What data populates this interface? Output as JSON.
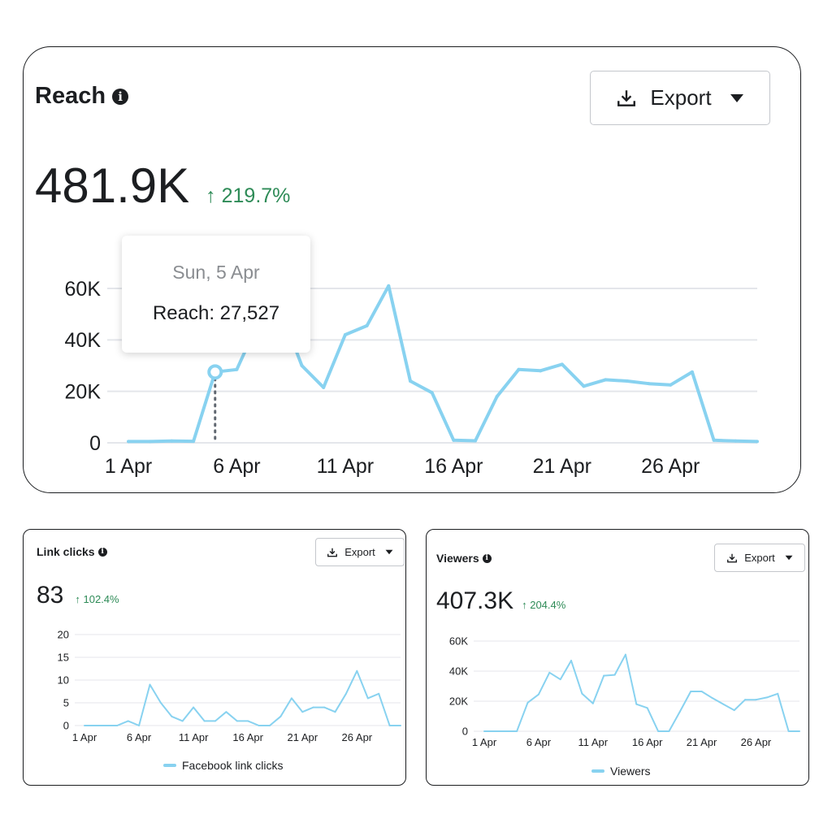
{
  "reach": {
    "title": "Reach",
    "info_icon": "info-icon",
    "export_label": "Export",
    "value": "481.9K",
    "delta": "219.7%",
    "tooltip": {
      "date": "Sun, 5 Apr",
      "label": "Reach: 27,527"
    }
  },
  "link_clicks": {
    "title": "Link clicks",
    "info_icon": "info-icon",
    "export_label": "Export",
    "value": "83",
    "delta": "102.4%",
    "legend": "Facebook link clicks"
  },
  "viewers": {
    "title": "Viewers",
    "info_icon": "info-icon",
    "export_label": "Export",
    "value": "407.3K",
    "delta": "204.4%",
    "legend": "Viewers"
  },
  "colors": {
    "line": "#88d2f0",
    "grid": "#e4e6eb",
    "positive": "#2e8b57",
    "text": "#1c1e21"
  },
  "chart_data": [
    {
      "type": "line",
      "id": "reach",
      "x": [
        1,
        2,
        3,
        4,
        5,
        6,
        7,
        8,
        9,
        10,
        11,
        12,
        13,
        14,
        15,
        16,
        17,
        18,
        19,
        20,
        21,
        22,
        23,
        24,
        25,
        26,
        27,
        28,
        29,
        30
      ],
      "x_tick_labels": [
        "1 Apr",
        "6 Apr",
        "11 Apr",
        "16 Apr",
        "21 Apr",
        "26 Apr"
      ],
      "x_tick_values": [
        1,
        6,
        11,
        16,
        21,
        26
      ],
      "series": [
        {
          "values": [
            500,
            500,
            700,
            600,
            27527,
            28500,
            47000,
            52000,
            30000,
            21500,
            42000,
            45500,
            61000,
            24000,
            19500,
            1000,
            800,
            18000,
            28500,
            28000,
            30500,
            22000,
            24500,
            24000,
            23000,
            22500,
            27500,
            1000,
            700,
            500
          ]
        }
      ],
      "yticks": [
        0,
        20000,
        40000,
        60000
      ],
      "ytick_labels": [
        "0",
        "20K",
        "40K",
        "60K"
      ],
      "ylim": [
        0,
        60000
      ],
      "xlim": [
        1,
        30
      ],
      "grid": true,
      "highlight": {
        "x": 5,
        "y": 27527
      }
    },
    {
      "type": "line",
      "id": "link_clicks",
      "x": [
        1,
        2,
        3,
        4,
        5,
        6,
        7,
        8,
        9,
        10,
        11,
        12,
        13,
        14,
        15,
        16,
        17,
        18,
        19,
        20,
        21,
        22,
        23,
        24,
        25,
        26,
        27,
        28,
        29,
        30
      ],
      "x_tick_labels": [
        "1 Apr",
        "6 Apr",
        "11 Apr",
        "16 Apr",
        "21 Apr",
        "26 Apr"
      ],
      "x_tick_values": [
        1,
        6,
        11,
        16,
        21,
        26
      ],
      "series": [
        {
          "name": "Facebook link clicks",
          "values": [
            0,
            0,
            0,
            0,
            1,
            0,
            9,
            5,
            2,
            1,
            4,
            1,
            1,
            3,
            1,
            1,
            0,
            0,
            2,
            6,
            3,
            4,
            4,
            3,
            7,
            12,
            6,
            7,
            0,
            0
          ]
        }
      ],
      "yticks": [
        0,
        5,
        10,
        15,
        20
      ],
      "ytick_labels": [
        "0",
        "5",
        "10",
        "15",
        "20"
      ],
      "ylim": [
        0,
        20
      ],
      "xlim": [
        1,
        30
      ],
      "grid": true,
      "legend": "bottom"
    },
    {
      "type": "line",
      "id": "viewers",
      "x": [
        1,
        2,
        3,
        4,
        5,
        6,
        7,
        8,
        9,
        10,
        11,
        12,
        13,
        14,
        15,
        16,
        17,
        18,
        19,
        20,
        21,
        22,
        23,
        24,
        25,
        26,
        27,
        28,
        29,
        30
      ],
      "x_tick_labels": [
        "1 Apr",
        "6 Apr",
        "11 Apr",
        "16 Apr",
        "21 Apr",
        "26 Apr"
      ],
      "x_tick_values": [
        1,
        6,
        11,
        16,
        21,
        26
      ],
      "series": [
        {
          "name": "Viewers",
          "values": [
            0,
            0,
            0,
            0,
            19000,
            24500,
            39000,
            34500,
            47000,
            25000,
            18500,
            37000,
            37500,
            51000,
            18000,
            15500,
            0,
            0,
            13000,
            26500,
            26500,
            22000,
            18000,
            14000,
            21000,
            21000,
            22500,
            25000,
            0,
            0
          ]
        }
      ],
      "yticks": [
        0,
        20000,
        40000,
        60000
      ],
      "ytick_labels": [
        "0",
        "20K",
        "40K",
        "60K"
      ],
      "ylim": [
        0,
        60000
      ],
      "xlim": [
        1,
        30
      ],
      "grid": true,
      "legend": "bottom"
    }
  ]
}
